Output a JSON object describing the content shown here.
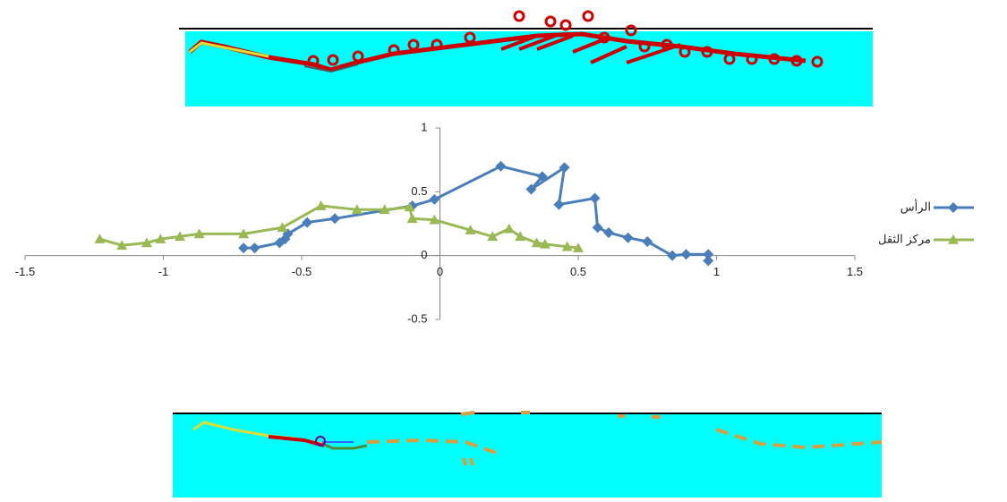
{
  "chart_data": {
    "type": "line",
    "xlim": [
      -1.5,
      1.5
    ],
    "ylim": [
      -0.5,
      1
    ],
    "xticks": [
      -1.5,
      -1,
      -0.5,
      0,
      0.5,
      1,
      1.5
    ],
    "yticks": [
      -0.5,
      0,
      0.5,
      1
    ],
    "legend": "right",
    "series": [
      {
        "name": "الرأس",
        "color": "#4a7ebb",
        "marker": "diamond",
        "x": [
          -0.71,
          -0.67,
          -0.58,
          -0.56,
          -0.55,
          -0.48,
          -0.38,
          -0.1,
          -0.02,
          0.22,
          0.37,
          0.33,
          0.45,
          0.43,
          0.56,
          0.57,
          0.61,
          0.68,
          0.75,
          0.84,
          0.89,
          0.97,
          0.97
        ],
        "values": [
          0.06,
          0.06,
          0.1,
          0.13,
          0.17,
          0.26,
          0.29,
          0.39,
          0.44,
          0.7,
          0.62,
          0.52,
          0.69,
          0.4,
          0.45,
          0.22,
          0.18,
          0.14,
          0.11,
          0,
          0.01,
          0.01,
          -0.04
        ]
      },
      {
        "name": "مركز الثقل",
        "color": "#98b954",
        "marker": "triangle",
        "x": [
          -1.23,
          -1.15,
          -1.06,
          -1.01,
          -0.94,
          -0.87,
          -0.71,
          -0.57,
          -0.43,
          -0.3,
          -0.2,
          -0.11,
          -0.1,
          -0.02,
          0.11,
          0.19,
          0.25,
          0.29,
          0.35,
          0.38,
          0.46,
          0.5
        ],
        "values": [
          0.13,
          0.08,
          0.1,
          0.13,
          0.15,
          0.17,
          0.17,
          0.22,
          0.39,
          0.36,
          0.36,
          0.38,
          0.29,
          0.28,
          0.2,
          0.15,
          0.21,
          0.15,
          0.1,
          0.09,
          0.07,
          0.06
        ]
      }
    ]
  }
}
